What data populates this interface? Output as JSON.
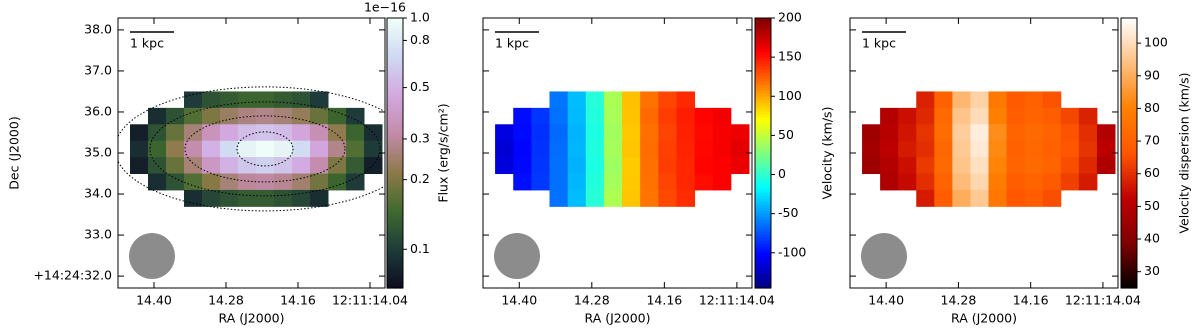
{
  "chart_data": [
    {
      "type": "heatmap",
      "xlabel": "RA (J2000)",
      "ylabel": "Dec (J2000)",
      "xlim": [
        14.46,
        14.015
      ],
      "ylim": [
        31.71,
        38.29
      ],
      "xticks": [
        {
          "value": 14.4,
          "label": "14.40"
        },
        {
          "value": 14.28,
          "label": "14.28"
        },
        {
          "value": 14.16,
          "label": "14.16"
        },
        {
          "value": 14.04,
          "label": "12:11:14.04"
        }
      ],
      "yticks": [
        {
          "value": 32,
          "label": "+14:24:32.0"
        },
        {
          "value": 33,
          "label": "33.0"
        },
        {
          "value": 34,
          "label": "34.0"
        },
        {
          "value": 35,
          "label": "35.0"
        },
        {
          "value": 36,
          "label": "36.0"
        },
        {
          "value": 37,
          "label": "37.0"
        },
        {
          "value": 38,
          "label": "38.0"
        }
      ],
      "ytick_labels": true,
      "scale_bar": "1 kpc",
      "contours": true,
      "x": [
        14.425,
        14.395,
        14.365,
        14.335,
        14.305,
        14.275,
        14.245,
        14.215,
        14.185,
        14.155,
        14.125,
        14.095,
        14.065,
        14.035
      ],
      "y": [
        36.3,
        35.9,
        35.5,
        35.1,
        34.7,
        34.3,
        33.9
      ],
      "values": [
        [
          null,
          null,
          null,
          0.1,
          0.12,
          0.13,
          0.14,
          0.14,
          0.13,
          0.12,
          0.1,
          null,
          null,
          null
        ],
        [
          null,
          0.09,
          0.12,
          0.16,
          0.2,
          0.24,
          0.27,
          0.28,
          0.26,
          0.23,
          0.18,
          0.14,
          0.1,
          null
        ],
        [
          0.08,
          0.12,
          0.18,
          0.26,
          0.36,
          0.46,
          0.55,
          0.58,
          0.54,
          0.45,
          0.34,
          0.22,
          0.14,
          0.09
        ],
        [
          0.09,
          0.14,
          0.22,
          0.33,
          0.5,
          0.7,
          0.9,
          0.98,
          0.9,
          0.7,
          0.45,
          0.28,
          0.16,
          0.1
        ],
        [
          0.08,
          0.12,
          0.18,
          0.26,
          0.38,
          0.5,
          0.6,
          0.64,
          0.58,
          0.47,
          0.33,
          0.2,
          0.13,
          0.08
        ],
        [
          null,
          0.09,
          0.12,
          0.16,
          0.21,
          0.26,
          0.3,
          0.31,
          0.29,
          0.25,
          0.19,
          0.14,
          0.1,
          null
        ],
        [
          null,
          null,
          null,
          0.09,
          0.11,
          0.12,
          0.13,
          0.13,
          0.12,
          0.11,
          0.09,
          null,
          null,
          null
        ]
      ],
      "colorbar": {
        "label": "Flux (erg/s/cm²)",
        "offset_label": "1e−16",
        "log": true,
        "lim": [
          0.068,
          1.0
        ],
        "ticks": [
          0.1,
          0.2,
          0.3,
          0.5,
          0.8,
          {
            "value": 1,
            "label": "1.0"
          }
        ],
        "colormap": [
          "#0d0b1e",
          "#1e3b3a",
          "#3f6a2e",
          "#8c7a48",
          "#c28aa8",
          "#d3a8e0",
          "#cfd8f2",
          "#f0fff8"
        ]
      }
    },
    {
      "type": "heatmap",
      "xlabel": "RA (J2000)",
      "xlim": [
        14.46,
        14.015
      ],
      "ylim": [
        31.71,
        38.29
      ],
      "xticks": [
        {
          "value": 14.4,
          "label": "14.40"
        },
        {
          "value": 14.28,
          "label": "14.28"
        },
        {
          "value": 14.16,
          "label": "14.16"
        },
        {
          "value": 14.04,
          "label": "12:11:14.04"
        }
      ],
      "yticks": [
        32,
        33,
        34,
        35,
        36,
        37,
        38
      ],
      "ytick_labels": false,
      "scale_bar": "1 kpc",
      "contours": false,
      "x": [
        14.425,
        14.395,
        14.365,
        14.335,
        14.305,
        14.275,
        14.245,
        14.215,
        14.185,
        14.155,
        14.125,
        14.095,
        14.065,
        14.035
      ],
      "y": [
        36.3,
        35.9,
        35.5,
        35.1,
        34.7,
        34.3,
        33.9
      ],
      "values": [
        [
          null,
          null,
          null,
          -62,
          -38,
          -3,
          42,
          92,
          118,
          133,
          143,
          null,
          null,
          null
        ],
        [
          null,
          -98,
          -84,
          -63,
          -39,
          -4,
          41,
          91,
          121,
          136,
          147,
          156,
          161,
          null
        ],
        [
          -112,
          -99,
          -86,
          -66,
          -41,
          -6,
          39,
          89,
          119,
          134,
          146,
          154,
          160,
          163
        ],
        [
          -116,
          -101,
          -85,
          -65,
          -40,
          -5,
          40,
          90,
          120,
          135,
          145,
          155,
          160,
          166
        ],
        [
          -114,
          -100,
          -84,
          -64,
          -42,
          -6,
          38,
          88,
          119,
          136,
          144,
          156,
          158,
          164
        ],
        [
          null,
          -97,
          -83,
          -64,
          -40,
          -4,
          40,
          89,
          118,
          134,
          144,
          153,
          158,
          null
        ],
        [
          null,
          null,
          null,
          -63,
          -38,
          -2,
          43,
          90,
          117,
          132,
          142,
          null,
          null,
          null
        ]
      ],
      "colorbar": {
        "label": "Velocity (km/s)",
        "log": false,
        "lim": [
          -145,
          200
        ],
        "ticks": [
          -100,
          -50,
          0,
          50,
          100,
          150,
          200
        ],
        "colormap": [
          "#00007f",
          "#0000ff",
          "#007fff",
          "#00ffff",
          "#7fff7f",
          "#ffff00",
          "#ff7f00",
          "#ff0000",
          "#7f0000"
        ]
      }
    },
    {
      "type": "heatmap",
      "xlabel": "RA (J2000)",
      "xlim": [
        14.46,
        14.015
      ],
      "ylim": [
        31.71,
        38.29
      ],
      "xticks": [
        {
          "value": 14.4,
          "label": "14.40"
        },
        {
          "value": 14.28,
          "label": "14.28"
        },
        {
          "value": 14.16,
          "label": "14.16"
        },
        {
          "value": 14.04,
          "label": "12:11:14.04"
        }
      ],
      "yticks": [
        32,
        33,
        34,
        35,
        36,
        37,
        38
      ],
      "ytick_labels": false,
      "scale_bar": "1 kpc",
      "contours": false,
      "x": [
        14.425,
        14.395,
        14.365,
        14.335,
        14.305,
        14.275,
        14.245,
        14.215,
        14.185,
        14.155,
        14.125,
        14.095,
        14.065,
        14.035
      ],
      "y": [
        36.3,
        35.9,
        35.5,
        35.1,
        34.7,
        34.3,
        33.9
      ],
      "values": [
        [
          null,
          null,
          null,
          58,
          70,
          92,
          98,
          78,
          68,
          70,
          66,
          null,
          null,
          null
        ],
        [
          null,
          50,
          55,
          59,
          73,
          95,
          100,
          80,
          69,
          71,
          69,
          64,
          58,
          null
        ],
        [
          46,
          51,
          56,
          61,
          74,
          97,
          104,
          83,
          71,
          73,
          71,
          66,
          60,
          50
        ],
        [
          47,
          52,
          57,
          60,
          72,
          96,
          103,
          82,
          70,
          72,
          70,
          67,
          61,
          52
        ],
        [
          45,
          50,
          55,
          62,
          73,
          95,
          101,
          81,
          71,
          73,
          71,
          65,
          59,
          49
        ],
        [
          null,
          49,
          54,
          60,
          71,
          93,
          99,
          79,
          69,
          71,
          68,
          63,
          57,
          null
        ],
        [
          null,
          null,
          null,
          57,
          69,
          90,
          96,
          77,
          67,
          69,
          65,
          null,
          null,
          null
        ]
      ],
      "colorbar": {
        "label": "Velocity dispersion (km/s)",
        "log": false,
        "lim": [
          25,
          107.7
        ],
        "ticks": [
          30,
          40,
          50,
          60,
          70,
          80,
          90,
          100
        ],
        "colormap": [
          "#000000",
          "#7f0000",
          "#bf0000",
          "#ff5500",
          "#ff8000",
          "#ffbf80",
          "#ffffff"
        ]
      }
    }
  ]
}
